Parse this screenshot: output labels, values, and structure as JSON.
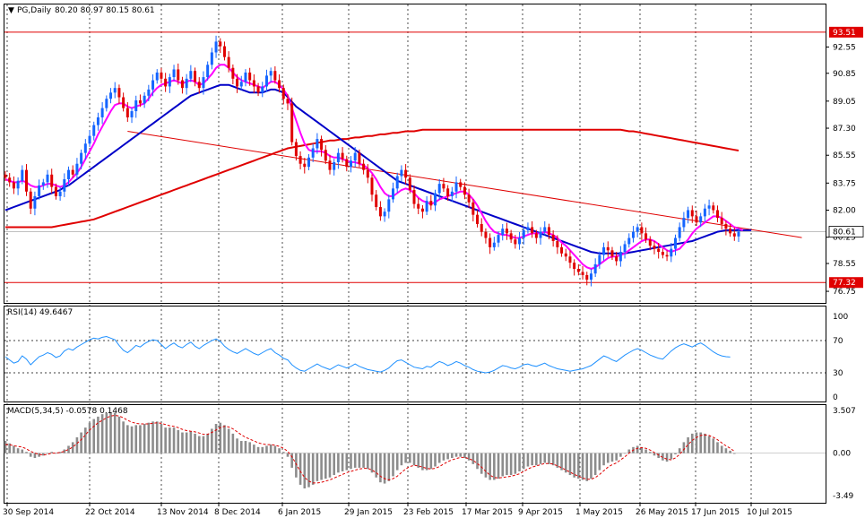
{
  "chart_data": [
    {
      "type": "candlestick",
      "title": "PG,Daily",
      "ohlc_text": "80.20 80.97 80.15 80.61",
      "ylim": [
        76.0,
        95.3
      ],
      "y_ticks": [
        "92.55",
        "90.85",
        "89.05",
        "87.30",
        "85.55",
        "83.75",
        "82.00",
        "80.25",
        "78.55",
        "76.75"
      ],
      "x_ticks": [
        "30 Sep 2014",
        "22 Oct 2014",
        "13 Nov 2014",
        "8 Dec 2014",
        "6 Jan 2015",
        "29 Jan 2015",
        "23 Feb 2015",
        "17 Mar 2015",
        "9 Apr 2015",
        "1 May 2015",
        "26 May 2015",
        "17 Jun 2015",
        "10 Jul 2015"
      ],
      "price_labels": {
        "upper": "93.51",
        "current": "80.61",
        "lower": "77.32"
      },
      "horizontal_levels": [
        93.51,
        77.32
      ],
      "trendline": {
        "from": [
          29,
          87.1
        ],
        "to": [
          171,
          81.0
        ]
      },
      "close": [
        84.1,
        83.8,
        83.4,
        83.9,
        84.6,
        83.2,
        82.1,
        82.9,
        83.6,
        83.8,
        84.3,
        83.5,
        82.9,
        83.2,
        84.0,
        84.6,
        84.3,
        85.0,
        85.7,
        86.3,
        86.8,
        87.5,
        88.0,
        88.6,
        89.2,
        89.6,
        89.9,
        89.3,
        88.6,
        88.0,
        88.4,
        89.1,
        88.9,
        89.4,
        89.8,
        90.4,
        90.9,
        90.5,
        90.0,
        90.6,
        91.1,
        90.4,
        89.9,
        90.5,
        91.0,
        90.3,
        89.9,
        90.6,
        91.4,
        92.2,
        92.9,
        92.6,
        91.9,
        91.2,
        90.5,
        90.0,
        90.3,
        90.9,
        90.4,
        90.0,
        89.6,
        90.0,
        90.7,
        91.0,
        90.4,
        89.9,
        89.2,
        88.9,
        86.4,
        85.5,
        85.0,
        84.8,
        85.4,
        86.0,
        86.6,
        85.9,
        85.2,
        84.6,
        85.1,
        85.7,
        85.3,
        84.8,
        85.2,
        85.7,
        85.0,
        84.6,
        84.1,
        83.0,
        82.2,
        81.6,
        81.9,
        82.7,
        83.4,
        84.2,
        84.6,
        84.1,
        83.3,
        82.4,
        82.1,
        81.9,
        82.6,
        82.3,
        83.1,
        83.7,
        83.4,
        82.9,
        83.2,
        83.8,
        83.5,
        83.0,
        82.5,
        81.7,
        81.1,
        80.6,
        80.2,
        79.6,
        79.9,
        80.4,
        80.8,
        80.5,
        80.1,
        79.8,
        80.2,
        80.7,
        80.9,
        80.5,
        80.2,
        80.6,
        80.9,
        80.4,
        80.0,
        79.6,
        79.2,
        79.0,
        78.6,
        78.2,
        78.0,
        77.8,
        77.5,
        77.9,
        78.5,
        79.1,
        79.6,
        79.4,
        79.0,
        78.7,
        79.3,
        79.8,
        80.2,
        80.6,
        80.9,
        80.5,
        80.1,
        79.7,
        79.5,
        79.3,
        79.1,
        79.0,
        79.5,
        80.2,
        80.9,
        81.5,
        82.0,
        81.6,
        81.2,
        81.6,
        82.1,
        82.3,
        82.0,
        81.5,
        81.1,
        80.8,
        80.5,
        80.3,
        80.61
      ],
      "ma_fast": [
        84.0,
        83.9,
        83.8,
        83.8,
        83.9,
        83.8,
        83.6,
        83.5,
        83.5,
        83.6,
        83.7,
        83.7,
        83.6,
        83.5,
        83.6,
        83.8,
        84.1,
        84.4,
        84.8,
        85.3,
        85.8,
        86.3,
        86.9,
        87.4,
        87.9,
        88.4,
        88.8,
        88.9,
        88.9,
        88.7,
        88.6,
        88.7,
        88.8,
        88.9,
        89.2,
        89.6,
        89.9,
        90.1,
        90.2,
        90.3,
        90.4,
        90.3,
        90.2,
        90.3,
        90.4,
        90.3,
        90.1,
        90.2,
        90.5,
        90.8,
        91.2,
        91.4,
        91.4,
        91.2,
        90.9,
        90.6,
        90.4,
        90.3,
        90.2,
        90.1,
        90.0,
        89.9,
        90.1,
        90.3,
        90.3,
        90.1,
        89.8,
        89.4,
        88.6,
        87.8,
        87.0,
        86.3,
        85.9,
        85.8,
        85.8,
        85.8,
        85.7,
        85.5,
        85.4,
        85.4,
        85.3,
        85.2,
        85.1,
        85.1,
        85.0,
        84.9,
        84.7,
        84.4,
        84.0,
        83.5,
        83.1,
        82.9,
        82.9,
        83.1,
        83.3,
        83.4,
        83.3,
        83.1,
        82.8,
        82.6,
        82.5,
        82.4,
        82.5,
        82.7,
        82.8,
        82.9,
        83.0,
        83.1,
        83.2,
        83.2,
        83.0,
        82.7,
        82.3,
        81.8,
        81.3,
        80.9,
        80.6,
        80.5,
        80.4,
        80.4,
        80.3,
        80.2,
        80.2,
        80.3,
        80.4,
        80.5,
        80.5,
        80.5,
        80.6,
        80.5,
        80.4,
        80.2,
        79.9,
        79.7,
        79.4,
        79.1,
        78.8,
        78.5,
        78.3,
        78.2,
        78.3,
        78.5,
        78.7,
        78.9,
        79.0,
        79.0,
        79.1,
        79.2,
        79.4,
        79.6,
        79.8,
        80.0,
        80.1,
        80.1,
        80.0,
        79.8,
        79.6,
        79.4,
        79.3,
        79.4,
        79.5,
        79.8,
        80.1,
        80.5,
        80.8,
        81.0,
        81.2,
        81.4,
        81.6,
        81.6,
        81.5,
        81.3,
        81.1,
        80.9,
        80.8,
        80.7
      ],
      "ma_mid": [
        82.0,
        82.1,
        82.2,
        82.3,
        82.4,
        82.5,
        82.6,
        82.7,
        82.8,
        82.9,
        83.0,
        83.1,
        83.2,
        83.3,
        83.5,
        83.6,
        83.8,
        84.0,
        84.2,
        84.4,
        84.6,
        84.8,
        85.0,
        85.2,
        85.4,
        85.6,
        85.8,
        86.0,
        86.2,
        86.4,
        86.6,
        86.8,
        87.0,
        87.2,
        87.4,
        87.6,
        87.8,
        88.0,
        88.2,
        88.4,
        88.6,
        88.8,
        89.0,
        89.2,
        89.4,
        89.5,
        89.6,
        89.7,
        89.8,
        89.9,
        90.0,
        90.1,
        90.1,
        90.1,
        90.0,
        89.9,
        89.8,
        89.7,
        89.6,
        89.6,
        89.6,
        89.6,
        89.7,
        89.8,
        89.8,
        89.7,
        89.6,
        89.3,
        89.0,
        88.7,
        88.5,
        88.3,
        88.1,
        87.9,
        87.7,
        87.5,
        87.3,
        87.1,
        86.9,
        86.7,
        86.5,
        86.3,
        86.1,
        85.9,
        85.7,
        85.5,
        85.3,
        85.1,
        84.9,
        84.7,
        84.5,
        84.3,
        84.1,
        83.9,
        83.8,
        83.7,
        83.6,
        83.5,
        83.4,
        83.3,
        83.2,
        83.1,
        83.0,
        82.9,
        82.8,
        82.7,
        82.6,
        82.5,
        82.4,
        82.3,
        82.2,
        82.1,
        82.0,
        81.9,
        81.8,
        81.7,
        81.6,
        81.5,
        81.4,
        81.3,
        81.2,
        81.1,
        81.0,
        80.9,
        80.8,
        80.7,
        80.6,
        80.5,
        80.4,
        80.3,
        80.2,
        80.1,
        80.0,
        79.9,
        79.8,
        79.7,
        79.6,
        79.5,
        79.4,
        79.3,
        79.25,
        79.2,
        79.2,
        79.2,
        79.2,
        79.2,
        79.2,
        79.2,
        79.25,
        79.3,
        79.35,
        79.4,
        79.45,
        79.5,
        79.55,
        79.6,
        79.65,
        79.7,
        79.75,
        79.8,
        79.85,
        79.9,
        79.95,
        80.0,
        80.1,
        80.2,
        80.3,
        80.4,
        80.5,
        80.6,
        80.65,
        80.7,
        80.7,
        80.7,
        80.7,
        80.7,
        80.7,
        80.7
      ],
      "ma_slow": [
        80.9,
        80.9,
        80.9,
        80.9,
        80.9,
        80.9,
        80.9,
        80.9,
        80.9,
        80.9,
        80.9,
        80.9,
        80.95,
        81.0,
        81.05,
        81.1,
        81.15,
        81.2,
        81.25,
        81.3,
        81.35,
        81.4,
        81.5,
        81.6,
        81.7,
        81.8,
        81.9,
        82.0,
        82.1,
        82.2,
        82.3,
        82.4,
        82.5,
        82.6,
        82.7,
        82.8,
        82.9,
        83.0,
        83.1,
        83.2,
        83.3,
        83.4,
        83.5,
        83.6,
        83.7,
        83.8,
        83.9,
        84.0,
        84.1,
        84.2,
        84.3,
        84.4,
        84.5,
        84.6,
        84.7,
        84.8,
        84.9,
        85.0,
        85.1,
        85.2,
        85.3,
        85.4,
        85.5,
        85.6,
        85.7,
        85.8,
        85.9,
        86.0,
        86.05,
        86.1,
        86.15,
        86.2,
        86.25,
        86.3,
        86.35,
        86.4,
        86.45,
        86.5,
        86.5,
        86.55,
        86.6,
        86.6,
        86.65,
        86.7,
        86.7,
        86.75,
        86.8,
        86.8,
        86.85,
        86.9,
        86.9,
        86.95,
        87.0,
        87.0,
        87.05,
        87.1,
        87.1,
        87.1,
        87.15,
        87.2,
        87.2,
        87.2,
        87.2,
        87.2,
        87.2,
        87.2,
        87.2,
        87.2,
        87.2,
        87.2,
        87.2,
        87.2,
        87.2,
        87.2,
        87.2,
        87.2,
        87.2,
        87.2,
        87.2,
        87.2,
        87.2,
        87.2,
        87.2,
        87.2,
        87.2,
        87.2,
        87.2,
        87.2,
        87.2,
        87.2,
        87.2,
        87.2,
        87.2,
        87.2,
        87.2,
        87.2,
        87.2,
        87.2,
        87.2,
        87.2,
        87.2,
        87.2,
        87.2,
        87.2,
        87.2,
        87.2,
        87.2,
        87.15,
        87.1,
        87.1,
        87.05,
        87.0,
        86.95,
        86.9,
        86.85,
        86.8,
        86.75,
        86.7,
        86.65,
        86.6,
        86.55,
        86.5,
        86.45,
        86.4,
        86.35,
        86.3,
        86.25,
        86.2,
        86.15,
        86.1,
        86.05,
        86.0,
        85.95,
        85.9,
        85.85
      ]
    },
    {
      "type": "line",
      "title": "RSI(14) 49.6467",
      "ylim": [
        0,
        100
      ],
      "y_ticks": [
        "100",
        "70",
        "30",
        "0"
      ],
      "levels": [
        70,
        30
      ],
      "values": [
        50,
        46,
        42,
        44,
        51,
        47,
        40,
        45,
        50,
        52,
        55,
        53,
        49,
        51,
        57,
        60,
        58,
        62,
        65,
        68,
        71,
        73,
        72,
        74,
        75,
        73,
        71,
        64,
        58,
        55,
        59,
        64,
        62,
        66,
        69,
        71,
        70,
        65,
        60,
        64,
        67,
        63,
        61,
        65,
        68,
        63,
        60,
        64,
        67,
        70,
        72,
        69,
        63,
        59,
        56,
        54,
        57,
        60,
        57,
        54,
        52,
        55,
        58,
        60,
        55,
        52,
        48,
        46,
        40,
        36,
        33,
        32,
        35,
        38,
        41,
        38,
        36,
        34,
        37,
        40,
        38,
        36,
        38,
        41,
        38,
        36,
        34,
        33,
        32,
        31,
        33,
        36,
        41,
        45,
        46,
        43,
        40,
        37,
        36,
        35,
        38,
        37,
        41,
        44,
        42,
        39,
        41,
        44,
        42,
        39,
        37,
        34,
        32,
        31,
        30,
        31,
        33,
        36,
        39,
        38,
        36,
        35,
        37,
        40,
        41,
        39,
        38,
        40,
        42,
        39,
        37,
        35,
        34,
        33,
        32,
        33,
        34,
        35,
        37,
        39,
        43,
        47,
        51,
        49,
        46,
        44,
        48,
        52,
        55,
        58,
        60,
        58,
        55,
        52,
        50,
        48,
        47,
        52,
        57,
        61,
        64,
        66,
        64,
        62,
        65,
        67,
        64,
        60,
        56,
        53,
        51,
        50,
        49.6
      ]
    },
    {
      "type": "bar",
      "title": "MACD(5,34,5) -0.0578 0.1468",
      "ylim": [
        -3.49,
        3.507
      ],
      "y_ticks": [
        "3.507",
        "0.00",
        "-3.49"
      ],
      "values": [
        1.0,
        0.8,
        0.6,
        0.4,
        0.3,
        0.1,
        -0.3,
        -0.4,
        -0.3,
        -0.2,
        0.0,
        0.1,
        0.0,
        0.1,
        0.3,
        0.6,
        0.9,
        1.3,
        1.7,
        2.1,
        2.5,
        2.8,
        3.0,
        3.2,
        3.3,
        3.35,
        3.3,
        3.0,
        2.6,
        2.3,
        2.2,
        2.3,
        2.3,
        2.4,
        2.5,
        2.6,
        2.6,
        2.4,
        2.1,
        2.1,
        2.1,
        1.9,
        1.7,
        1.7,
        1.8,
        1.6,
        1.4,
        1.4,
        1.6,
        2.0,
        2.4,
        2.5,
        2.3,
        2.0,
        1.6,
        1.2,
        1.0,
        1.0,
        0.9,
        0.7,
        0.5,
        0.5,
        0.6,
        0.7,
        0.6,
        0.4,
        0.1,
        -0.3,
        -1.2,
        -2.0,
        -2.6,
        -2.9,
        -2.8,
        -2.6,
        -2.3,
        -2.2,
        -2.1,
        -2.0,
        -1.8,
        -1.6,
        -1.5,
        -1.4,
        -1.3,
        -1.2,
        -1.2,
        -1.2,
        -1.3,
        -1.6,
        -2.0,
        -2.4,
        -2.5,
        -2.3,
        -1.9,
        -1.4,
        -1.0,
        -0.8,
        -0.8,
        -1.0,
        -1.2,
        -1.4,
        -1.4,
        -1.3,
        -1.1,
        -0.8,
        -0.6,
        -0.5,
        -0.4,
        -0.3,
        -0.3,
        -0.4,
        -0.6,
        -0.9,
        -1.3,
        -1.7,
        -2.0,
        -2.2,
        -2.2,
        -2.1,
        -1.9,
        -1.8,
        -1.8,
        -1.7,
        -1.5,
        -1.3,
        -1.1,
        -1.0,
        -1.0,
        -0.9,
        -0.8,
        -0.9,
        -1.0,
        -1.2,
        -1.4,
        -1.6,
        -1.8,
        -2.0,
        -2.1,
        -2.2,
        -2.3,
        -2.1,
        -1.8,
        -1.4,
        -1.0,
        -0.8,
        -0.7,
        -0.6,
        -0.3,
        0.0,
        0.3,
        0.5,
        0.6,
        0.5,
        0.3,
        0.1,
        -0.2,
        -0.4,
        -0.6,
        -0.7,
        -0.5,
        -0.1,
        0.4,
        0.9,
        1.3,
        1.6,
        1.7,
        1.7,
        1.6,
        1.4,
        1.2,
        0.9,
        0.6,
        0.4,
        0.2,
        -0.06
      ],
      "signal": [
        0.7,
        0.7,
        0.6,
        0.55,
        0.5,
        0.35,
        0.15,
        0.0,
        -0.1,
        -0.15,
        -0.1,
        0.0,
        0.0,
        0.05,
        0.15,
        0.3,
        0.5,
        0.8,
        1.1,
        1.5,
        1.9,
        2.2,
        2.5,
        2.7,
        2.9,
        3.05,
        3.1,
        3.05,
        2.9,
        2.7,
        2.55,
        2.45,
        2.4,
        2.4,
        2.4,
        2.45,
        2.5,
        2.45,
        2.35,
        2.25,
        2.2,
        2.1,
        1.95,
        1.85,
        1.8,
        1.75,
        1.65,
        1.55,
        1.55,
        1.7,
        1.9,
        2.1,
        2.2,
        2.15,
        2.0,
        1.75,
        1.5,
        1.3,
        1.15,
        1.0,
        0.85,
        0.75,
        0.7,
        0.7,
        0.65,
        0.55,
        0.4,
        0.15,
        -0.3,
        -0.9,
        -1.5,
        -2.0,
        -2.3,
        -2.45,
        -2.45,
        -2.4,
        -2.3,
        -2.2,
        -2.05,
        -1.9,
        -1.75,
        -1.6,
        -1.5,
        -1.4,
        -1.3,
        -1.25,
        -1.25,
        -1.4,
        -1.6,
        -1.9,
        -2.1,
        -2.2,
        -2.1,
        -1.9,
        -1.6,
        -1.3,
        -1.1,
        -1.0,
        -1.05,
        -1.15,
        -1.25,
        -1.3,
        -1.25,
        -1.1,
        -0.9,
        -0.7,
        -0.55,
        -0.45,
        -0.35,
        -0.35,
        -0.45,
        -0.6,
        -0.85,
        -1.15,
        -1.5,
        -1.8,
        -2.0,
        -2.05,
        -2.0,
        -1.95,
        -1.9,
        -1.8,
        -1.7,
        -1.5,
        -1.3,
        -1.15,
        -1.05,
        -0.95,
        -0.85,
        -0.85,
        -0.9,
        -1.05,
        -1.2,
        -1.4,
        -1.55,
        -1.75,
        -1.9,
        -2.05,
        -2.15,
        -2.15,
        -2.0,
        -1.75,
        -1.45,
        -1.15,
        -0.95,
        -0.8,
        -0.55,
        -0.3,
        0.0,
        0.25,
        0.4,
        0.45,
        0.4,
        0.25,
        0.05,
        -0.15,
        -0.35,
        -0.5,
        -0.55,
        -0.4,
        -0.1,
        0.3,
        0.7,
        1.05,
        1.3,
        1.45,
        1.5,
        1.45,
        1.3,
        1.1,
        0.85,
        0.6,
        0.4,
        0.15
      ]
    }
  ]
}
